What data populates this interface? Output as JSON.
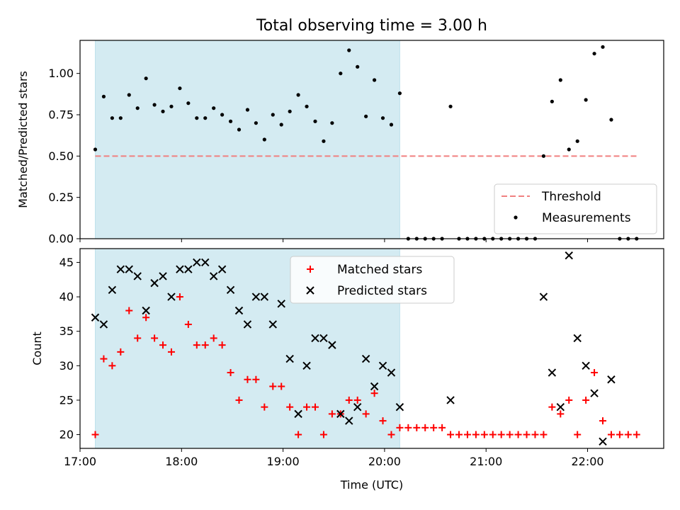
{
  "chart_data": [
    {
      "type": "scatter",
      "title": "Total observing time = 3.00 h",
      "ylabel": "Matched/Predicted stars",
      "xlabel": "",
      "xlim": [
        "17:00",
        "22:45"
      ],
      "ylim": [
        0,
        1.2
      ],
      "yticks": [
        "0.00",
        "0.25",
        "0.50",
        "0.75",
        "1.00"
      ],
      "shaded_interval": [
        "17:09",
        "20:09"
      ],
      "shade_color": "#add8e6",
      "threshold": {
        "name": "Threshold",
        "value": 0.5,
        "x_range": [
          "17:09",
          "22:29"
        ],
        "color": "#f08080",
        "style": "dashed"
      },
      "legend": {
        "placement": "lower-right",
        "entries": [
          "Threshold",
          "Measurements"
        ]
      },
      "series": [
        {
          "name": "Measurements",
          "color": "#000000",
          "marker": "dot",
          "points": [
            [
              "17:09",
              0.54
            ],
            [
              "17:14",
              0.86
            ],
            [
              "17:19",
              0.73
            ],
            [
              "17:24",
              0.73
            ],
            [
              "17:29",
              0.87
            ],
            [
              "17:34",
              0.79
            ],
            [
              "17:39",
              0.97
            ],
            [
              "17:44",
              0.81
            ],
            [
              "17:49",
              0.77
            ],
            [
              "17:54",
              0.8
            ],
            [
              "17:59",
              0.91
            ],
            [
              "18:04",
              0.82
            ],
            [
              "18:09",
              0.73
            ],
            [
              "18:14",
              0.73
            ],
            [
              "18:19",
              0.79
            ],
            [
              "18:24",
              0.75
            ],
            [
              "18:29",
              0.71
            ],
            [
              "18:34",
              0.66
            ],
            [
              "18:39",
              0.78
            ],
            [
              "18:44",
              0.7
            ],
            [
              "18:49",
              0.6
            ],
            [
              "18:54",
              0.75
            ],
            [
              "18:59",
              0.69
            ],
            [
              "19:04",
              0.77
            ],
            [
              "19:09",
              0.87
            ],
            [
              "19:14",
              0.8
            ],
            [
              "19:19",
              0.71
            ],
            [
              "19:24",
              0.59
            ],
            [
              "19:29",
              0.7
            ],
            [
              "19:34",
              1.0
            ],
            [
              "19:39",
              1.14
            ],
            [
              "19:44",
              1.04
            ],
            [
              "19:49",
              0.74
            ],
            [
              "19:54",
              0.96
            ],
            [
              "19:59",
              0.73
            ],
            [
              "20:04",
              0.69
            ],
            [
              "20:09",
              0.88
            ],
            [
              "20:14",
              0
            ],
            [
              "20:19",
              0
            ],
            [
              "20:24",
              0
            ],
            [
              "20:29",
              0
            ],
            [
              "20:34",
              0
            ],
            [
              "20:39",
              0.8
            ],
            [
              "20:44",
              0
            ],
            [
              "20:49",
              0
            ],
            [
              "20:54",
              0
            ],
            [
              "20:59",
              0
            ],
            [
              "21:04",
              0
            ],
            [
              "21:09",
              0
            ],
            [
              "21:14",
              0
            ],
            [
              "21:19",
              0
            ],
            [
              "21:24",
              0
            ],
            [
              "21:29",
              0
            ],
            [
              "21:34",
              0.5
            ],
            [
              "21:39",
              0.83
            ],
            [
              "21:44",
              0.96
            ],
            [
              "21:49",
              0.54
            ],
            [
              "21:54",
              0.59
            ],
            [
              "21:59",
              0.84
            ],
            [
              "22:04",
              1.12
            ],
            [
              "22:09",
              1.16
            ],
            [
              "22:14",
              0.72
            ],
            [
              "22:19",
              0
            ],
            [
              "22:24",
              0
            ],
            [
              "22:29",
              0
            ]
          ]
        }
      ]
    },
    {
      "type": "scatter",
      "title": "",
      "ylabel": "Count",
      "xlabel": "Time (UTC)",
      "xlim": [
        "17:00",
        "22:45"
      ],
      "ylim": [
        18,
        47
      ],
      "xticks": [
        "17:00",
        "18:00",
        "19:00",
        "20:00",
        "21:00",
        "22:00"
      ],
      "yticks": [
        "20",
        "25",
        "30",
        "35",
        "40",
        "45"
      ],
      "shaded_interval": [
        "17:09",
        "20:09"
      ],
      "shade_color": "#add8e6",
      "legend": {
        "placement": "upper-center",
        "entries": [
          "Matched stars",
          "Predicted stars"
        ]
      },
      "series": [
        {
          "name": "Matched stars",
          "color": "#ff0000",
          "marker": "plus",
          "points": [
            [
              "17:09",
              20
            ],
            [
              "17:14",
              31
            ],
            [
              "17:19",
              30
            ],
            [
              "17:24",
              32
            ],
            [
              "17:29",
              38
            ],
            [
              "17:34",
              34
            ],
            [
              "17:39",
              37
            ],
            [
              "17:44",
              34
            ],
            [
              "17:49",
              33
            ],
            [
              "17:54",
              32
            ],
            [
              "17:59",
              40
            ],
            [
              "18:04",
              36
            ],
            [
              "18:09",
              33
            ],
            [
              "18:14",
              33
            ],
            [
              "18:19",
              34
            ],
            [
              "18:24",
              33
            ],
            [
              "18:29",
              29
            ],
            [
              "18:34",
              25
            ],
            [
              "18:39",
              28
            ],
            [
              "18:44",
              28
            ],
            [
              "18:49",
              24
            ],
            [
              "18:54",
              27
            ],
            [
              "18:59",
              27
            ],
            [
              "19:04",
              24
            ],
            [
              "19:09",
              20
            ],
            [
              "19:14",
              24
            ],
            [
              "19:19",
              24
            ],
            [
              "19:24",
              20
            ],
            [
              "19:29",
              23
            ],
            [
              "19:34",
              23
            ],
            [
              "19:39",
              25
            ],
            [
              "19:44",
              25
            ],
            [
              "19:49",
              23
            ],
            [
              "19:54",
              26
            ],
            [
              "19:59",
              22
            ],
            [
              "20:04",
              20
            ],
            [
              "20:09",
              21
            ],
            [
              "20:14",
              21
            ],
            [
              "20:19",
              21
            ],
            [
              "20:24",
              21
            ],
            [
              "20:29",
              21
            ],
            [
              "20:34",
              21
            ],
            [
              "20:39",
              20
            ],
            [
              "20:44",
              20
            ],
            [
              "20:49",
              20
            ],
            [
              "20:54",
              20
            ],
            [
              "20:59",
              20
            ],
            [
              "21:04",
              20
            ],
            [
              "21:09",
              20
            ],
            [
              "21:14",
              20
            ],
            [
              "21:19",
              20
            ],
            [
              "21:24",
              20
            ],
            [
              "21:29",
              20
            ],
            [
              "21:34",
              20
            ],
            [
              "21:39",
              24
            ],
            [
              "21:44",
              23
            ],
            [
              "21:49",
              25
            ],
            [
              "21:54",
              20
            ],
            [
              "21:59",
              25
            ],
            [
              "22:04",
              29
            ],
            [
              "22:09",
              22
            ],
            [
              "22:14",
              20
            ],
            [
              "22:19",
              20
            ],
            [
              "22:24",
              20
            ],
            [
              "22:29",
              20
            ]
          ]
        },
        {
          "name": "Predicted stars",
          "color": "#000000",
          "marker": "x",
          "points": [
            [
              "17:09",
              37
            ],
            [
              "17:14",
              36
            ],
            [
              "17:19",
              41
            ],
            [
              "17:24",
              44
            ],
            [
              "17:29",
              44
            ],
            [
              "17:34",
              43
            ],
            [
              "17:39",
              38
            ],
            [
              "17:44",
              42
            ],
            [
              "17:49",
              43
            ],
            [
              "17:54",
              40
            ],
            [
              "17:59",
              44
            ],
            [
              "18:04",
              44
            ],
            [
              "18:09",
              45
            ],
            [
              "18:14",
              45
            ],
            [
              "18:19",
              43
            ],
            [
              "18:24",
              44
            ],
            [
              "18:29",
              41
            ],
            [
              "18:34",
              38
            ],
            [
              "18:39",
              36
            ],
            [
              "18:44",
              40
            ],
            [
              "18:49",
              40
            ],
            [
              "18:54",
              36
            ],
            [
              "18:59",
              39
            ],
            [
              "19:04",
              31
            ],
            [
              "19:09",
              23
            ],
            [
              "19:14",
              30
            ],
            [
              "19:19",
              34
            ],
            [
              "19:24",
              34
            ],
            [
              "19:29",
              33
            ],
            [
              "19:34",
              23
            ],
            [
              "19:39",
              22
            ],
            [
              "19:44",
              24
            ],
            [
              "19:49",
              31
            ],
            [
              "19:54",
              27
            ],
            [
              "19:59",
              30
            ],
            [
              "20:04",
              29
            ],
            [
              "20:09",
              24
            ],
            [
              "20:39",
              25
            ],
            [
              "21:34",
              40
            ],
            [
              "21:39",
              29
            ],
            [
              "21:44",
              24
            ],
            [
              "21:49",
              46
            ],
            [
              "21:54",
              34
            ],
            [
              "21:59",
              30
            ],
            [
              "22:04",
              26
            ],
            [
              "22:09",
              19
            ],
            [
              "22:14",
              28
            ]
          ]
        }
      ]
    }
  ]
}
